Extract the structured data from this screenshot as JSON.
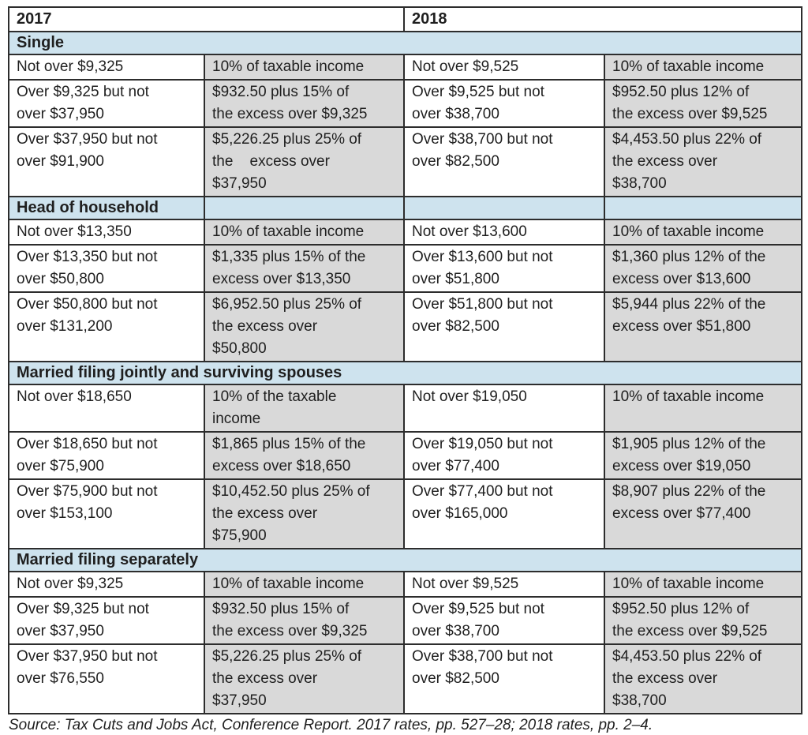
{
  "header": {
    "col_2017": "2017",
    "col_2018": "2018"
  },
  "sections": [
    {
      "label": "Single",
      "split_cells": false,
      "rows": [
        [
          "Not over $9,325",
          "10% of taxable income",
          "Not over $9,525",
          "10% of taxable income"
        ],
        [
          "Over $9,325 but not\nover $37,950",
          "$932.50 plus 15% of\nthe excess over $9,325",
          "Over $9,525 but not\nover $38,700",
          "$952.50 plus 12% of\nthe excess over $9,525"
        ],
        [
          "Over $37,950 but not\nover $91,900",
          "$5,226.25 plus 25% of\nthe    excess over\n$37,950",
          "Over $38,700 but not\nover $82,500",
          "$4,453.50 plus 22% of\nthe excess over\n$38,700"
        ]
      ]
    },
    {
      "label": "Head of household",
      "split_cells": true,
      "rows": [
        [
          "Not over $13,350",
          "10% of taxable income",
          "Not over $13,600",
          "10% of taxable income"
        ],
        [
          "Over $13,350 but not\nover $50,800",
          "$1,335 plus 15% of the\nexcess over $13,350",
          "Over $13,600 but not\nover $51,800",
          "$1,360 plus 12% of the\nexcess over $13,600"
        ],
        [
          "Over $50,800 but not\nover $131,200",
          "$6,952.50 plus 25% of\nthe excess over\n$50,800",
          "Over $51,800 but not\nover $82,500",
          "$5,944 plus 22% of the\nexcess over $51,800"
        ]
      ]
    },
    {
      "label": "Married filing jointly and surviving spouses",
      "split_cells": false,
      "rows": [
        [
          "Not over $18,650",
          "10% of the taxable\nincome",
          "Not over $19,050",
          "10% of taxable income"
        ],
        [
          "Over $18,650 but not\nover $75,900",
          "$1,865 plus 15% of the\nexcess over $18,650",
          "Over $19,050 but not\nover $77,400",
          "$1,905 plus 12% of the\nexcess over $19,050"
        ],
        [
          "Over $75,900 but not\nover $153,100",
          "$10,452.50 plus 25% of\nthe excess over\n$75,900",
          "Over $77,400 but not\nover $165,000",
          "$8,907 plus 22% of the\nexcess over $77,400"
        ]
      ]
    },
    {
      "label": "Married filing separately",
      "split_cells": false,
      "rows": [
        [
          "Not over $9,325",
          "10% of taxable income",
          "Not over $9,525",
          "10% of taxable income"
        ],
        [
          "Over $9,325 but not\nover $37,950",
          "$932.50 plus 15% of\nthe excess over $9,325",
          "Over $9,525 but not\nover $38,700",
          "$952.50 plus 12% of\nthe excess over $9,525"
        ],
        [
          "Over $37,950 but not\nover $76,550",
          "$5,226.25 plus 25% of\nthe excess over\n$37,950",
          "Over $38,700 but not\nover $82,500",
          "$4,453.50 plus 22% of\nthe excess over\n$38,700"
        ]
      ]
    }
  ],
  "footer": {
    "source": "Source: Tax Cuts and Jobs Act, Conference Report. 2017 rates, pp. 527–28; 2018 rates, pp. 2–4."
  },
  "colors": {
    "section_bg": "#cee3ee",
    "calc_bg": "#d9d9d9",
    "border": "#2d2d2d"
  }
}
